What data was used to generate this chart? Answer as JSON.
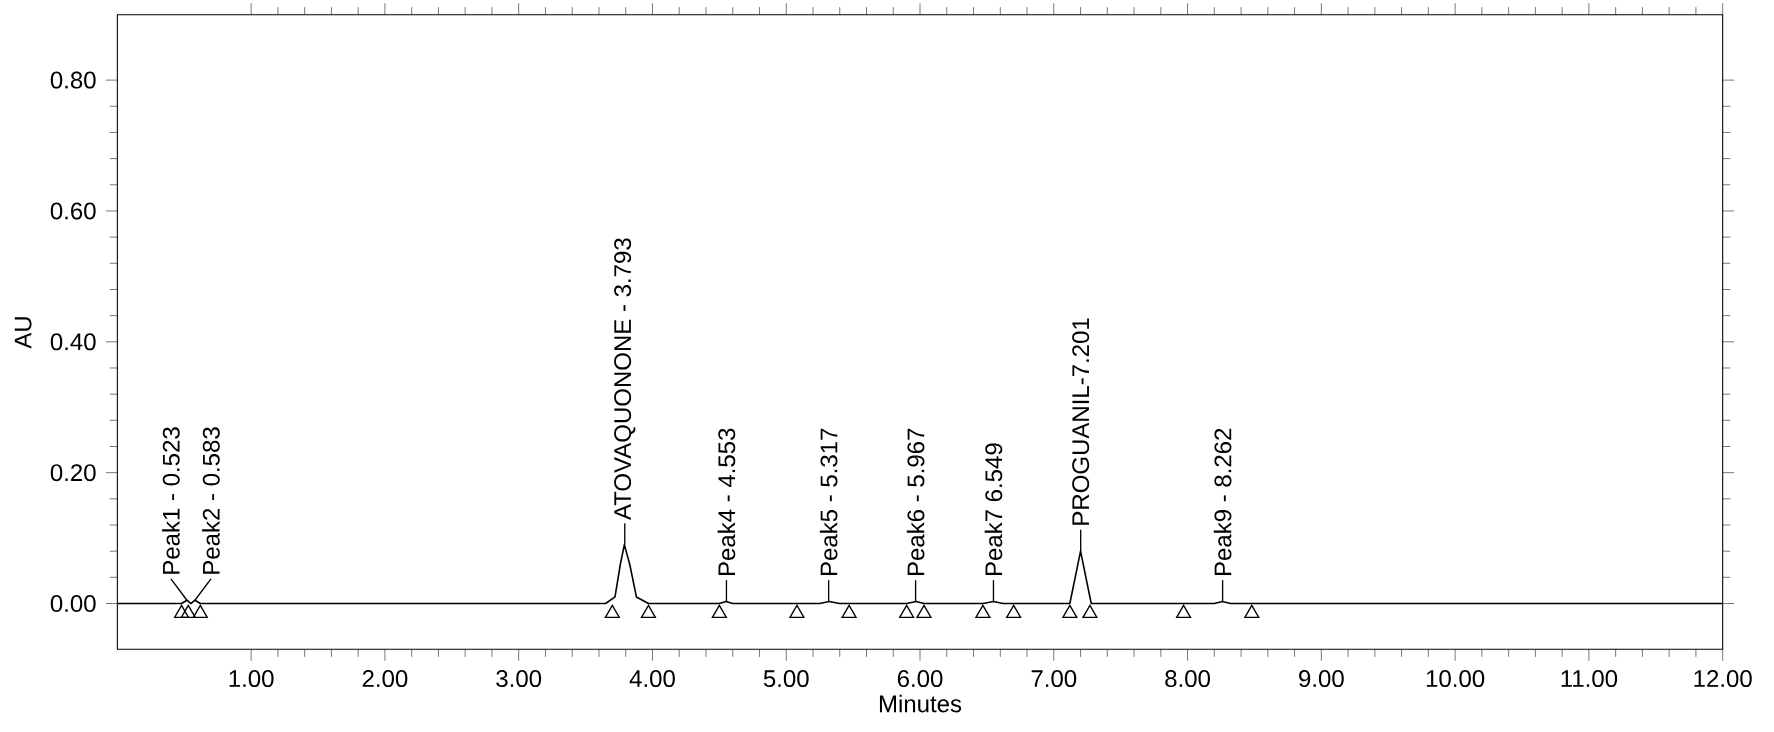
{
  "chart_data": {
    "type": "line",
    "xlabel": "Minutes",
    "ylabel": "AU",
    "xlim": [
      0,
      12
    ],
    "ylim": [
      -0.07,
      0.9
    ],
    "xticks": [
      {
        "value": 1,
        "label": "1.00"
      },
      {
        "value": 2,
        "label": "2.00"
      },
      {
        "value": 3,
        "label": "3.00"
      },
      {
        "value": 4,
        "label": "4.00"
      },
      {
        "value": 5,
        "label": "5.00"
      },
      {
        "value": 6,
        "label": "6.00"
      },
      {
        "value": 7,
        "label": "7.00"
      },
      {
        "value": 8,
        "label": "8.00"
      },
      {
        "value": 9,
        "label": "9.00"
      },
      {
        "value": 10,
        "label": "10.00"
      },
      {
        "value": 11,
        "label": "11.00"
      },
      {
        "value": 12,
        "label": "12.00"
      }
    ],
    "yticks": [
      {
        "value": 0,
        "label": "0.00"
      },
      {
        "value": 0.2,
        "label": "0.20"
      },
      {
        "value": 0.4,
        "label": "0.40"
      },
      {
        "value": 0.6,
        "label": "0.60"
      },
      {
        "value": 0.8,
        "label": "0.80"
      }
    ],
    "series": [
      {
        "color": "#000000",
        "x": [
          0.0,
          0.48,
          0.52,
          0.55,
          0.58,
          0.62,
          3.65,
          3.72,
          3.76,
          3.79,
          3.83,
          3.88,
          3.97,
          4.5,
          4.55,
          4.6,
          5.25,
          5.32,
          5.4,
          5.9,
          5.97,
          6.03,
          6.47,
          6.55,
          6.62,
          7.12,
          7.17,
          7.2,
          7.23,
          7.28,
          8.2,
          8.26,
          8.32,
          12.0
        ],
        "values": [
          0.0,
          0.0,
          0.005,
          0.0,
          0.005,
          0.0,
          0.0,
          0.01,
          0.06,
          0.09,
          0.06,
          0.01,
          0.0,
          0.0,
          0.003,
          0.0,
          0.0,
          0.003,
          0.0,
          0.0,
          0.003,
          0.0,
          0.0,
          0.003,
          0.0,
          0.0,
          0.05,
          0.08,
          0.05,
          0.0,
          0.0,
          0.003,
          0.0,
          0.0
        ]
      },
      {
        "type": "scatter",
        "color": "#000000",
        "marker": "triangle",
        "x": [
          0.48,
          0.53,
          0.62,
          3.7,
          3.97,
          4.5,
          5.08,
          5.47,
          5.9,
          6.03,
          6.47,
          6.7,
          7.12,
          7.27,
          7.97,
          8.48
        ],
        "values": [
          -0.015,
          -0.015,
          -0.015,
          -0.015,
          -0.015,
          -0.015,
          -0.015,
          -0.015,
          -0.015,
          -0.015,
          -0.015,
          -0.015,
          -0.015,
          -0.015,
          -0.015,
          -0.015
        ]
      }
    ],
    "annotations": [
      {
        "text": "Peak1 - 0.523",
        "x": 0.52,
        "y": 0.005
      },
      {
        "text": "Peak2 - 0.583",
        "x": 0.58,
        "y": 0.005
      },
      {
        "text": "ATOVAQUONONE - 3.793",
        "x": 3.793,
        "y": 0.09
      },
      {
        "text": "Peak4 - 4.553",
        "x": 4.553,
        "y": 0.003
      },
      {
        "text": "Peak5 - 5.317",
        "x": 5.317,
        "y": 0.003
      },
      {
        "text": "Peak6 - 5.967",
        "x": 5.967,
        "y": 0.003
      },
      {
        "text": "Peak7 6.549",
        "x": 6.549,
        "y": 0.003
      },
      {
        "text": "PROGUANIL-7.201",
        "x": 7.201,
        "y": 0.08
      },
      {
        "text": "Peak9 - 8.262",
        "x": 8.262,
        "y": 0.003
      }
    ]
  }
}
